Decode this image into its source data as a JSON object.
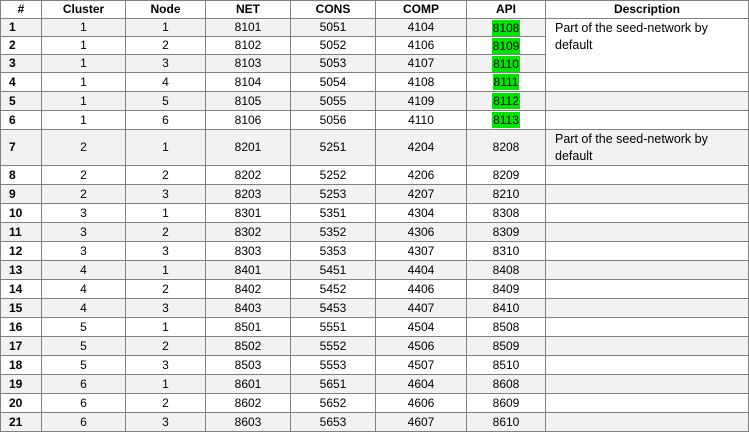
{
  "table": {
    "headers": [
      "#",
      "Cluster",
      "Node",
      "NET",
      "CONS",
      "COMP",
      "API",
      "Description"
    ],
    "rows": [
      {
        "n": "1",
        "cluster": "1",
        "node": "1",
        "net": "8101",
        "cons": "5051",
        "comp": "4104",
        "api": "8108",
        "highlight": true
      },
      {
        "n": "2",
        "cluster": "1",
        "node": "2",
        "net": "8102",
        "cons": "5052",
        "comp": "4106",
        "api": "8109",
        "highlight": true
      },
      {
        "n": "3",
        "cluster": "1",
        "node": "3",
        "net": "8103",
        "cons": "5053",
        "comp": "4107",
        "api": "8110",
        "highlight": true
      },
      {
        "n": "4",
        "cluster": "1",
        "node": "4",
        "net": "8104",
        "cons": "5054",
        "comp": "4108",
        "api": "8111",
        "highlight": true
      },
      {
        "n": "5",
        "cluster": "1",
        "node": "5",
        "net": "8105",
        "cons": "5055",
        "comp": "4109",
        "api": "8112",
        "highlight": true
      },
      {
        "n": "6",
        "cluster": "1",
        "node": "6",
        "net": "8106",
        "cons": "5056",
        "comp": "4110",
        "api": "8113",
        "highlight": true
      },
      {
        "n": "7",
        "cluster": "2",
        "node": "1",
        "net": "8201",
        "cons": "5251",
        "comp": "4204",
        "api": "8208",
        "highlight": false
      },
      {
        "n": "8",
        "cluster": "2",
        "node": "2",
        "net": "8202",
        "cons": "5252",
        "comp": "4206",
        "api": "8209",
        "highlight": false
      },
      {
        "n": "9",
        "cluster": "2",
        "node": "3",
        "net": "8203",
        "cons": "5253",
        "comp": "4207",
        "api": "8210",
        "highlight": false
      },
      {
        "n": "10",
        "cluster": "3",
        "node": "1",
        "net": "8301",
        "cons": "5351",
        "comp": "4304",
        "api": "8308",
        "highlight": false
      },
      {
        "n": "11",
        "cluster": "3",
        "node": "2",
        "net": "8302",
        "cons": "5352",
        "comp": "4306",
        "api": "8309",
        "highlight": false
      },
      {
        "n": "12",
        "cluster": "3",
        "node": "3",
        "net": "8303",
        "cons": "5353",
        "comp": "4307",
        "api": "8310",
        "highlight": false
      },
      {
        "n": "13",
        "cluster": "4",
        "node": "1",
        "net": "8401",
        "cons": "5451",
        "comp": "4404",
        "api": "8408",
        "highlight": false
      },
      {
        "n": "14",
        "cluster": "4",
        "node": "2",
        "net": "8402",
        "cons": "5452",
        "comp": "4406",
        "api": "8409",
        "highlight": false
      },
      {
        "n": "15",
        "cluster": "4",
        "node": "3",
        "net": "8403",
        "cons": "5453",
        "comp": "4407",
        "api": "8410",
        "highlight": false
      },
      {
        "n": "16",
        "cluster": "5",
        "node": "1",
        "net": "8501",
        "cons": "5551",
        "comp": "4504",
        "api": "8508",
        "highlight": false
      },
      {
        "n": "17",
        "cluster": "5",
        "node": "2",
        "net": "8502",
        "cons": "5552",
        "comp": "4506",
        "api": "8509",
        "highlight": false
      },
      {
        "n": "18",
        "cluster": "5",
        "node": "3",
        "net": "8503",
        "cons": "5553",
        "comp": "4507",
        "api": "8510",
        "highlight": false
      },
      {
        "n": "19",
        "cluster": "6",
        "node": "1",
        "net": "8601",
        "cons": "5651",
        "comp": "4604",
        "api": "8608",
        "highlight": false
      },
      {
        "n": "20",
        "cluster": "6",
        "node": "2",
        "net": "8602",
        "cons": "5652",
        "comp": "4606",
        "api": "8609",
        "highlight": false
      },
      {
        "n": "21",
        "cluster": "6",
        "node": "3",
        "net": "8603",
        "cons": "5653",
        "comp": "4607",
        "api": "8610",
        "highlight": false
      }
    ],
    "descriptions": [
      {
        "start_row": 1,
        "rowspan": 3,
        "text": "Part of the seed-network by default"
      },
      {
        "start_row": 7,
        "rowspan": 1,
        "text": "Part of the seed-network by default"
      }
    ]
  },
  "colors": {
    "api_highlight": "#00e600",
    "grid": "#808080",
    "row_alt": "#f2f2f2"
  }
}
